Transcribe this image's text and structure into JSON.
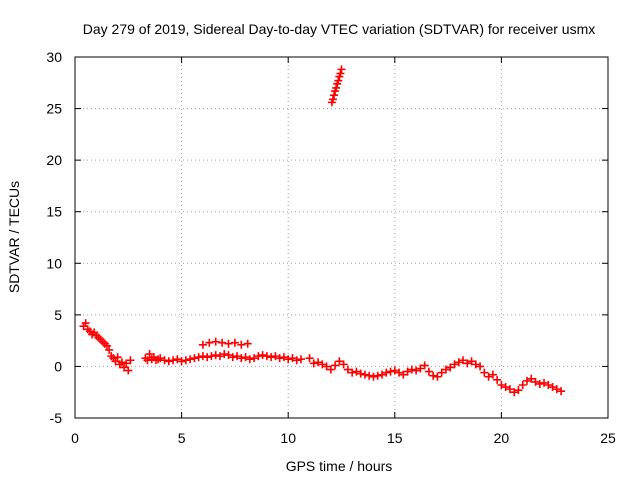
{
  "chart_data": {
    "type": "scatter",
    "title": "Day 279 of 2019, Sidereal Day-to-day VTEC variation (SDTVAR) for receiver usmx",
    "xlabel": "GPS time / hours",
    "ylabel": "SDTVAR / TECUs",
    "xlim": [
      0,
      25
    ],
    "ylim": [
      -5,
      30
    ],
    "xticks": [
      "0",
      "5",
      "10",
      "15",
      "20",
      "25"
    ],
    "yticks": [
      "-5",
      "0",
      "5",
      "10",
      "15",
      "20",
      "25",
      "30"
    ],
    "grid": true,
    "marker": "+",
    "color": "#ff0000",
    "series": [
      {
        "name": "SDTVAR",
        "x": [
          0.4,
          0.5,
          0.6,
          0.7,
          0.8,
          0.9,
          1.0,
          1.1,
          1.2,
          1.3,
          1.4,
          1.5,
          1.6,
          1.7,
          1.8,
          1.9,
          2.0,
          2.1,
          2.2,
          2.3,
          2.4,
          2.5,
          2.6,
          3.3,
          3.4,
          3.5,
          3.6,
          3.7,
          3.8,
          3.9,
          4.0,
          4.2,
          4.4,
          4.6,
          4.8,
          5.0,
          5.2,
          5.4,
          5.6,
          5.8,
          6.0,
          6.2,
          6.4,
          6.6,
          6.8,
          7.0,
          7.2,
          7.4,
          7.6,
          7.8,
          8.0,
          8.2,
          8.4,
          8.6,
          8.8,
          9.0,
          9.2,
          9.4,
          9.6,
          9.8,
          10.0,
          10.2,
          10.4,
          10.6,
          11.0,
          11.2,
          11.4,
          11.6,
          11.8,
          12.0,
          12.2,
          12.4,
          12.6,
          12.8,
          13.0,
          13.2,
          13.4,
          13.6,
          13.8,
          14.0,
          14.2,
          14.4,
          14.6,
          14.8,
          15.0,
          15.2,
          15.4,
          15.6,
          15.8,
          16.0,
          16.2,
          16.4,
          16.6,
          16.8,
          17.0,
          17.2,
          17.4,
          17.6,
          17.8,
          18.0,
          18.2,
          18.4,
          18.6,
          18.8,
          19.0,
          19.2,
          19.4,
          19.6,
          19.8,
          20.0,
          20.2,
          20.4,
          20.6,
          20.8,
          21.0,
          21.2,
          21.4,
          21.6,
          21.8,
          22.0,
          22.2,
          22.4,
          22.6,
          22.8,
          6.0,
          6.3,
          6.6,
          6.9,
          7.2,
          7.5,
          7.8,
          8.1,
          12.05,
          12.1,
          12.15,
          12.2,
          12.25,
          12.3,
          12.35,
          12.4,
          12.45,
          12.5
        ],
        "y": [
          3.9,
          4.2,
          3.6,
          3.4,
          3.1,
          3.3,
          3.0,
          2.8,
          2.6,
          2.4,
          2.2,
          2.0,
          1.6,
          1.0,
          0.8,
          0.5,
          0.9,
          0.2,
          0.4,
          -0.1,
          0.3,
          -0.4,
          0.6,
          0.8,
          0.6,
          1.2,
          0.7,
          0.9,
          0.6,
          0.7,
          0.8,
          0.6,
          0.5,
          0.6,
          0.7,
          0.5,
          0.6,
          0.7,
          0.8,
          0.9,
          1.0,
          0.9,
          1.0,
          1.1,
          1.0,
          1.2,
          1.1,
          0.9,
          1.0,
          0.8,
          0.9,
          0.7,
          0.8,
          1.0,
          1.1,
          1.0,
          0.9,
          1.0,
          0.8,
          0.9,
          0.7,
          0.8,
          0.6,
          0.7,
          0.8,
          0.3,
          0.4,
          0.2,
          0.0,
          -0.3,
          0.1,
          0.5,
          0.2,
          -0.3,
          -0.6,
          -0.5,
          -0.7,
          -0.8,
          -0.9,
          -1.0,
          -0.9,
          -0.8,
          -0.6,
          -0.5,
          -0.4,
          -0.6,
          -0.8,
          -0.5,
          -0.3,
          -0.4,
          -0.2,
          0.1,
          -0.5,
          -0.9,
          -1.0,
          -0.6,
          -0.3,
          -0.1,
          0.2,
          0.4,
          0.6,
          0.3,
          0.5,
          0.2,
          0.0,
          -0.6,
          -1.0,
          -0.8,
          -1.3,
          -1.8,
          -2.0,
          -2.2,
          -2.5,
          -2.3,
          -1.8,
          -1.4,
          -1.2,
          -1.5,
          -1.7,
          -1.6,
          -1.8,
          -2.0,
          -2.2,
          -2.4,
          2.1,
          2.3,
          2.4,
          2.3,
          2.2,
          2.3,
          2.1,
          2.2,
          25.6,
          25.9,
          26.3,
          26.7,
          27.0,
          27.4,
          27.7,
          28.1,
          28.4,
          28.8
        ]
      }
    ]
  }
}
